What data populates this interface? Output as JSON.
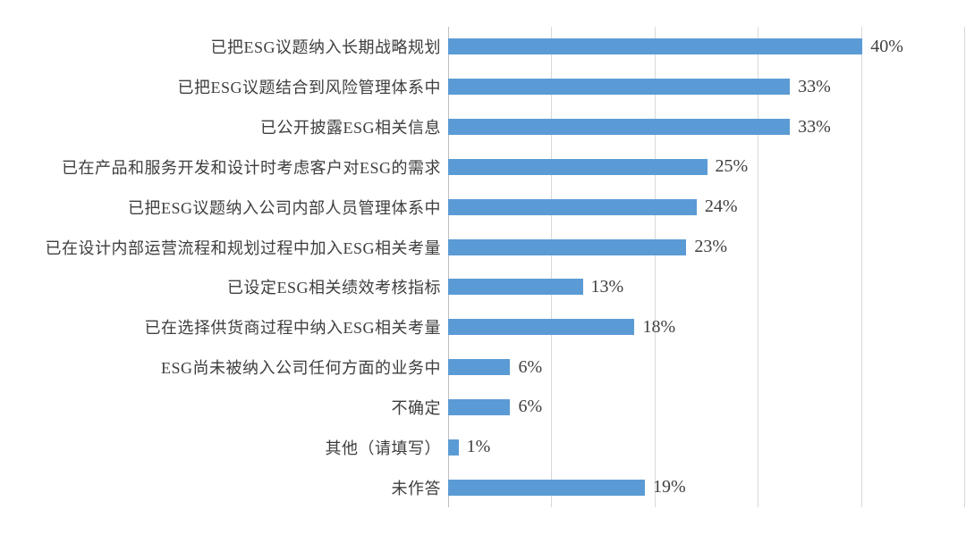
{
  "chart_data": {
    "type": "bar",
    "orientation": "horizontal",
    "title": "",
    "xlabel": "",
    "ylabel": "",
    "xlim": [
      0,
      50
    ],
    "gridline_step": 10,
    "grid": true,
    "legend": false,
    "categories": [
      "已把ESG议题纳入长期战略规划",
      "已把ESG议题结合到风险管理体系中",
      "已公开披露ESG相关信息",
      "已在产品和服务开发和设计时考虑客户对ESG的需求",
      "已把ESG议题纳入公司内部人员管理体系中",
      "已在设计内部运营流程和规划过程中加入ESG相关考量",
      "已设定ESG相关绩效考核指标",
      "已在选择供货商过程中纳入ESG相关考量",
      "ESG尚未被纳入公司任何方面的业务中",
      "不确定",
      "其他（请填写）",
      "未作答"
    ],
    "values": [
      40,
      33,
      33,
      25,
      24,
      23,
      13,
      18,
      6,
      6,
      1,
      19
    ],
    "value_labels": [
      "40%",
      "33%",
      "33%",
      "25%",
      "24%",
      "23%",
      "13%",
      "18%",
      "6%",
      "6%",
      "1%",
      "19%"
    ],
    "colors": {
      "bar": "#5b9bd5",
      "gridline": "#d9d9d9",
      "axis_line": "#bfbfbf",
      "label_text": "#3e3e3e",
      "value_text": "#404040",
      "background": "#ffffff"
    }
  }
}
